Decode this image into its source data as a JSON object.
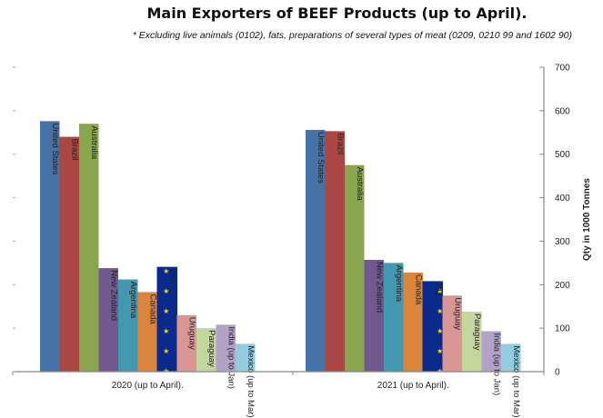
{
  "chart_data": {
    "type": "bar",
    "title": "Main Exporters of BEEF Products (up to April).",
    "subtitle": "* Excluding live animals (0102), fats, preparations of several types of meat (0209, 0210 99 and 1602 90)",
    "ylabel": "Qty in 1000 Tonnes",
    "ylim": [
      0,
      700
    ],
    "yticks": [
      0,
      100,
      200,
      300,
      400,
      500,
      600,
      700
    ],
    "axis_side": "right",
    "grid": false,
    "legend": "none",
    "categories": [
      "2020 (up to April).",
      "2021 (up to April)."
    ],
    "series": [
      {
        "name": "United States",
        "color": "#4572A7",
        "values": [
          576,
          556
        ]
      },
      {
        "name": "Brazil",
        "color": "#AA4643",
        "values": [
          540,
          553
        ]
      },
      {
        "name": "Australia",
        "color": "#89A54E",
        "values": [
          570,
          475
        ]
      },
      {
        "name": "New Zealand",
        "color": "#71588F",
        "values": [
          238,
          257
        ]
      },
      {
        "name": "Argentina",
        "color": "#4198AF",
        "values": [
          212,
          250
        ]
      },
      {
        "name": "Canada",
        "color": "#DB843D",
        "values": [
          183,
          228
        ]
      },
      {
        "name": "EU",
        "color": "#0A2A8C",
        "values": [
          240,
          207
        ]
      },
      {
        "name": "Uruguay",
        "color": "#D99694",
        "values": [
          130,
          175
        ]
      },
      {
        "name": "Paraguay",
        "color": "#C3D69B",
        "values": [
          100,
          138
        ]
      },
      {
        "name": "India (up to Jan)",
        "color": "#B3A2C7",
        "values": [
          108,
          93
        ]
      },
      {
        "name": "Mexico (up to Mar)",
        "color": "#93CDDD",
        "values": [
          64,
          64
        ]
      }
    ]
  }
}
